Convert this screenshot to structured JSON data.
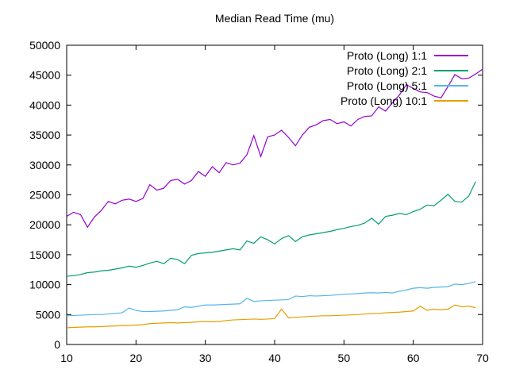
{
  "chart_data": {
    "type": "line",
    "title": "Median Read Time (mu)",
    "xlabel": "",
    "ylabel": "",
    "xlim": [
      10,
      70
    ],
    "ylim": [
      0,
      50000
    ],
    "xticks": [
      10,
      20,
      30,
      40,
      50,
      60,
      70
    ],
    "yticks": [
      0,
      5000,
      10000,
      15000,
      20000,
      25000,
      30000,
      35000,
      40000,
      45000,
      50000
    ],
    "grid": false,
    "legend_position": "top-right-inside",
    "x_start": 10,
    "x_step": 1,
    "series": [
      {
        "name": "Proto (Long) 1:1",
        "color": "#9400d3",
        "values": [
          21400,
          22100,
          21700,
          19600,
          21300,
          22400,
          23900,
          23500,
          24100,
          24300,
          23900,
          24400,
          26700,
          25800,
          26100,
          27400,
          27600,
          26800,
          27400,
          28900,
          28100,
          29700,
          28700,
          30400,
          30000,
          30300,
          31700,
          34900,
          31400,
          34700,
          35000,
          35800,
          34600,
          33200,
          35000,
          36300,
          36700,
          37400,
          37600,
          36900,
          37200,
          36500,
          37600,
          38100,
          38200,
          39700,
          39000,
          40400,
          41700,
          43400,
          42800,
          42200,
          42100,
          41500,
          41200,
          43100,
          45100,
          44400,
          44500,
          45200,
          46000
        ]
      },
      {
        "name": "Proto (Long) 2:1",
        "color": "#009e73",
        "values": [
          11400,
          11500,
          11700,
          12000,
          12100,
          12300,
          12400,
          12600,
          12800,
          13100,
          12900,
          13200,
          13600,
          13900,
          13500,
          14400,
          14200,
          13500,
          14900,
          15200,
          15300,
          15400,
          15600,
          15800,
          16000,
          15800,
          17300,
          16900,
          18000,
          17500,
          16800,
          17700,
          18200,
          17200,
          18000,
          18300,
          18500,
          18700,
          18900,
          19200,
          19400,
          19700,
          19900,
          20300,
          21100,
          20100,
          21400,
          21600,
          21900,
          21700,
          22200,
          22600,
          23300,
          23200,
          24100,
          25100,
          23900,
          23800,
          24800,
          27200
        ]
      },
      {
        "name": "Proto (Long) 5:1",
        "color": "#56b4e9",
        "values": [
          4800,
          4850,
          4900,
          4950,
          5000,
          5000,
          5100,
          5200,
          5300,
          6100,
          5700,
          5500,
          5500,
          5550,
          5600,
          5700,
          5800,
          6300,
          6200,
          6400,
          6600,
          6600,
          6650,
          6700,
          6750,
          6800,
          7700,
          7200,
          7300,
          7350,
          7400,
          7450,
          7500,
          8100,
          8000,
          8150,
          8100,
          8150,
          8200,
          8300,
          8400,
          8450,
          8500,
          8600,
          8650,
          8600,
          8700,
          8600,
          8900,
          9100,
          9400,
          9500,
          9400,
          9550,
          9600,
          9650,
          10100,
          10000,
          10200,
          10500
        ]
      },
      {
        "name": "Proto (Long) 10:1",
        "color": "#e69f00",
        "values": [
          2800,
          2850,
          2900,
          2950,
          2950,
          3000,
          3050,
          3100,
          3150,
          3200,
          3250,
          3300,
          3500,
          3550,
          3600,
          3650,
          3600,
          3650,
          3700,
          3800,
          3850,
          3800,
          3850,
          4000,
          4100,
          4150,
          4200,
          4250,
          4200,
          4250,
          4350,
          5900,
          4450,
          4550,
          4600,
          4700,
          4750,
          4800,
          4800,
          4850,
          4900,
          4950,
          5000,
          5100,
          5150,
          5200,
          5300,
          5350,
          5400,
          5500,
          5600,
          6400,
          5700,
          5900,
          5800,
          5900,
          6600,
          6300,
          6400,
          6150
        ]
      }
    ]
  }
}
